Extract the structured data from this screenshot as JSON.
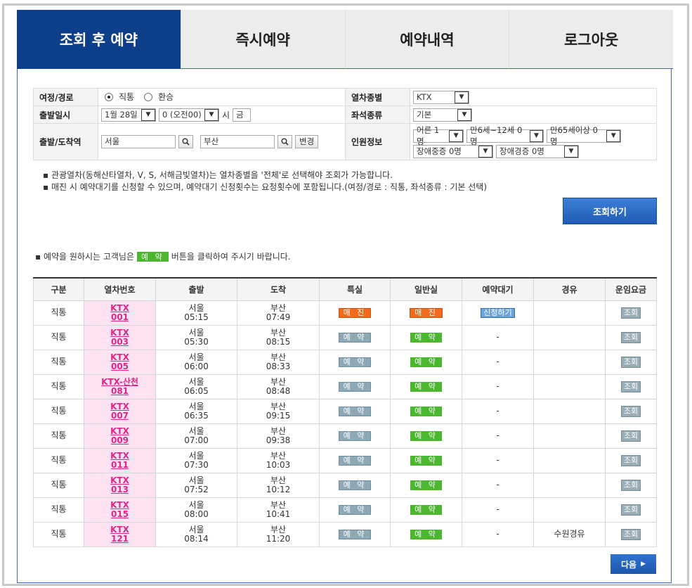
{
  "tabs": [
    {
      "label": "조회 후 예약",
      "active": true
    },
    {
      "label": "즉시예약",
      "active": false
    },
    {
      "label": "예약내역",
      "active": false
    },
    {
      "label": "로그아웃",
      "active": false
    }
  ],
  "form": {
    "route": {
      "label": "여정/경로",
      "opt1": "직통",
      "opt2": "환승",
      "selected": "직통"
    },
    "train_type": {
      "label": "열차종별",
      "value": "KTX"
    },
    "depart": {
      "label": "출발일시",
      "date": "1월 28일",
      "hour": "0 (오전00)",
      "hour_suffix": "시",
      "weekday": "금"
    },
    "seat_type": {
      "label": "좌석종류",
      "value": "기본"
    },
    "stations": {
      "label": "출발/도착역",
      "from": "서울",
      "to": "부산",
      "swap": "변경"
    },
    "passengers": {
      "label": "인원정보",
      "adult": "어른 1명",
      "child": "만6세~12세 0명",
      "senior": "만65세이상 0명",
      "disabled_severe": "장애중증 0명",
      "disabled_mild": "장애경증 0명"
    }
  },
  "notes": [
    "▪ 관광열차(동해산타열차, V, S, 서해금빛열차)는 열차종별을 '전체'로 선택해야 조회가 가능합니다.",
    "▪ 매진 시 예약대기를 신청할 수 있으며, 예약대기 신청횟수는 요청횟수에 포함됩니다.(여정/경로 : 직통, 좌석종류 : 기본 선택)"
  ],
  "search_button": "조회하기",
  "guide": {
    "pre": "▪ 예약을 원하시는 고객님은",
    "chip": "예 약",
    "post": "버튼을 클릭하여 주시기 바랍니다."
  },
  "table": {
    "headers": [
      "구분",
      "열차번호",
      "출발",
      "도착",
      "특실",
      "일반실",
      "예약대기",
      "경유",
      "운임요금"
    ],
    "rows": [
      {
        "type": "직통",
        "tname": "KTX",
        "tno": "001",
        "dep": "서울",
        "dtime": "05:15",
        "arr": "부산",
        "atime": "07:49",
        "first": "매 진",
        "first_state": "soldout",
        "standard": "매 진",
        "std_state": "soldout",
        "wait": "신청하기",
        "via": "",
        "fare": "조회"
      },
      {
        "type": "직통",
        "tname": "KTX",
        "tno": "003",
        "dep": "서울",
        "dtime": "05:30",
        "arr": "부산",
        "atime": "08:15",
        "first": "예 약",
        "first_state": "avail",
        "standard": "예 약",
        "std_state": "avail",
        "wait": "-",
        "via": "",
        "fare": "조회"
      },
      {
        "type": "직통",
        "tname": "KTX",
        "tno": "005",
        "dep": "서울",
        "dtime": "06:00",
        "arr": "부산",
        "atime": "08:33",
        "first": "예 약",
        "first_state": "avail",
        "standard": "예 약",
        "std_state": "avail",
        "wait": "-",
        "via": "",
        "fare": "조회"
      },
      {
        "type": "직통",
        "tname": "KTX-산천",
        "tno": "081",
        "dep": "서울",
        "dtime": "06:05",
        "arr": "부산",
        "atime": "08:48",
        "first": "예 약",
        "first_state": "avail",
        "standard": "예 약",
        "std_state": "avail",
        "wait": "-",
        "via": "",
        "fare": "조회"
      },
      {
        "type": "직통",
        "tname": "KTX",
        "tno": "007",
        "dep": "서울",
        "dtime": "06:35",
        "arr": "부산",
        "atime": "09:15",
        "first": "예 약",
        "first_state": "avail",
        "standard": "예 약",
        "std_state": "avail",
        "wait": "-",
        "via": "",
        "fare": "조회"
      },
      {
        "type": "직통",
        "tname": "KTX",
        "tno": "009",
        "dep": "서울",
        "dtime": "07:00",
        "arr": "부산",
        "atime": "09:38",
        "first": "예 약",
        "first_state": "avail",
        "standard": "예 약",
        "std_state": "avail",
        "wait": "-",
        "via": "",
        "fare": "조회"
      },
      {
        "type": "직통",
        "tname": "KTX",
        "tno": "011",
        "dep": "서울",
        "dtime": "07:30",
        "arr": "부산",
        "atime": "10:03",
        "first": "예 약",
        "first_state": "avail",
        "standard": "예 약",
        "std_state": "avail",
        "wait": "-",
        "via": "",
        "fare": "조회"
      },
      {
        "type": "직통",
        "tname": "KTX",
        "tno": "013",
        "dep": "서울",
        "dtime": "07:52",
        "arr": "부산",
        "atime": "10:12",
        "first": "예 약",
        "first_state": "avail",
        "standard": "예 약",
        "std_state": "avail",
        "wait": "-",
        "via": "",
        "fare": "조회"
      },
      {
        "type": "직통",
        "tname": "KTX",
        "tno": "015",
        "dep": "서울",
        "dtime": "08:00",
        "arr": "부산",
        "atime": "10:41",
        "first": "예 약",
        "first_state": "avail",
        "standard": "예 약",
        "std_state": "avail",
        "wait": "-",
        "via": "",
        "fare": "조회"
      },
      {
        "type": "직통",
        "tname": "KTX",
        "tno": "121",
        "dep": "서울",
        "dtime": "08:14",
        "arr": "부산",
        "atime": "11:20",
        "first": "예 약",
        "first_state": "avail",
        "standard": "예 약",
        "std_state": "avail",
        "wait": "-",
        "via": "수원경유",
        "fare": "조회"
      }
    ]
  },
  "next_button": "다음",
  "colors": {
    "tab_active": "#0e3f8a",
    "reserve_green": "#4bb72e",
    "soldout_orange": "#f26a1a",
    "train_cell_pink": "#fde2f1",
    "train_link": "#e0258a"
  }
}
